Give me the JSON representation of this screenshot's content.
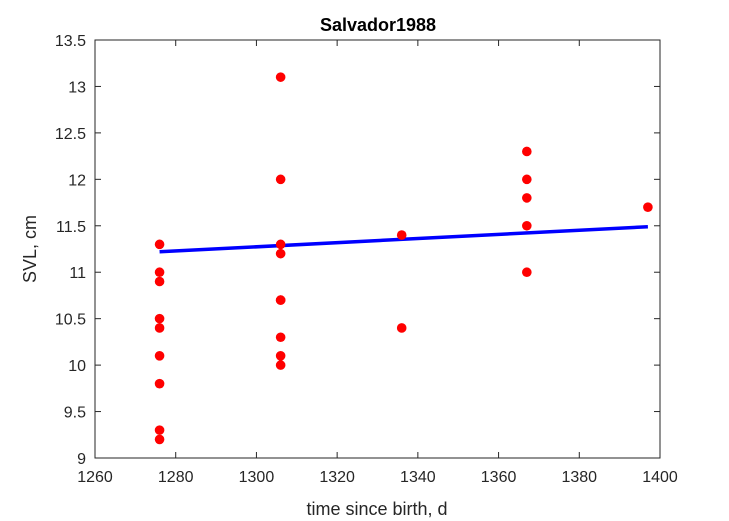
{
  "chart_data": {
    "type": "scatter",
    "title": "Salvador1988",
    "xlabel": "time since birth, d",
    "ylabel": "SVL, cm",
    "xlim": [
      1260,
      1400
    ],
    "ylim": [
      9,
      13.5
    ],
    "xticks": [
      1260,
      1280,
      1300,
      1320,
      1340,
      1360,
      1380,
      1400
    ],
    "yticks": [
      9,
      9.5,
      10,
      10.5,
      11,
      11.5,
      12,
      12.5,
      13,
      13.5
    ],
    "xtick_labels": [
      "1260",
      "1280",
      "1300",
      "1320",
      "1340",
      "1360",
      "1380",
      "1400"
    ],
    "ytick_labels": [
      "9",
      "9.5",
      "10",
      "10.5",
      "11",
      "11.5",
      "12",
      "12.5",
      "13",
      "13.5"
    ],
    "grid": false,
    "series": [
      {
        "kind": "scatter",
        "color": "#ff0000",
        "points": [
          [
            1276,
            11.3
          ],
          [
            1276,
            11.0
          ],
          [
            1276,
            10.9
          ],
          [
            1276,
            10.5
          ],
          [
            1276,
            10.4
          ],
          [
            1276,
            10.1
          ],
          [
            1276,
            9.8
          ],
          [
            1276,
            9.3
          ],
          [
            1276,
            9.2
          ],
          [
            1306,
            13.1
          ],
          [
            1306,
            12.0
          ],
          [
            1306,
            11.3
          ],
          [
            1306,
            11.2
          ],
          [
            1306,
            10.7
          ],
          [
            1306,
            10.7
          ],
          [
            1306,
            10.3
          ],
          [
            1306,
            10.1
          ],
          [
            1306,
            10.0
          ],
          [
            1336,
            11.4
          ],
          [
            1336,
            10.4
          ],
          [
            1367,
            12.3
          ],
          [
            1367,
            12.0
          ],
          [
            1367,
            11.8
          ],
          [
            1367,
            11.5
          ],
          [
            1367,
            11.0
          ],
          [
            1397,
            11.7
          ]
        ]
      },
      {
        "kind": "line",
        "color": "#0000ff",
        "points": [
          [
            1276,
            11.22
          ],
          [
            1397,
            11.49
          ]
        ]
      }
    ]
  }
}
